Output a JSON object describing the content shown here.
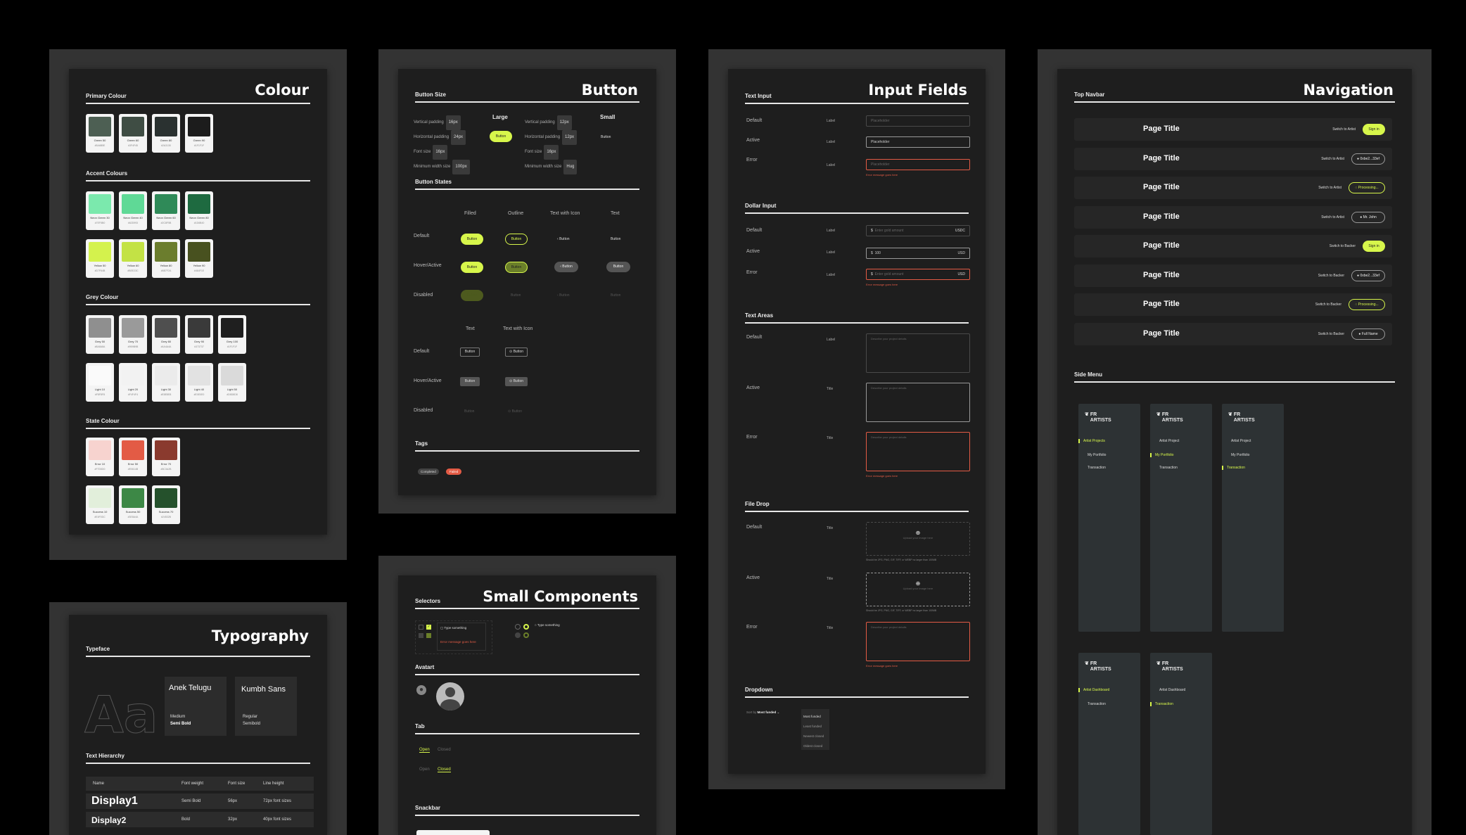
{
  "colour": {
    "title": "Colour",
    "primary_title": "Primary Colour",
    "accent_title": "Accent Colours",
    "grey_title": "Grey Colour",
    "state_title": "State Colour",
    "primary": [
      {
        "n": "Green 50",
        "h": "#5A6B5E",
        "c": "#4d5f53"
      },
      {
        "n": "Green 60",
        "h": "#3F4F45",
        "c": "#3f4d44"
      },
      {
        "n": "Green 80",
        "h": "#2A3130",
        "c": "#2a3130"
      },
      {
        "n": "Green 90",
        "h": "#1F1F1F",
        "c": "#1c1c1c"
      }
    ],
    "accent1": [
      {
        "n": "Neon Green 30",
        "h": "#7EF5B0",
        "c": "#7be9ad"
      },
      {
        "n": "Neon Green 40",
        "h": "#62D993",
        "c": "#5fd996"
      },
      {
        "n": "Neon Green 60",
        "h": "#2C8F5B",
        "c": "#2f8a58"
      },
      {
        "n": "Neon Green 80",
        "h": "#1D6B40",
        "c": "#1e6a40"
      }
    ],
    "accent2": [
      {
        "n": "Yellow 50",
        "h": "#D7F64B",
        "c": "#d4f24d"
      },
      {
        "n": "Yellow 60",
        "h": "#BEE23C",
        "c": "#c3e245"
      },
      {
        "n": "Yellow 80",
        "h": "#6B7F2A",
        "c": "#6b7d2d"
      },
      {
        "n": "Yellow 90",
        "h": "#464F1E",
        "c": "#48511f"
      }
    ],
    "grey1": [
      {
        "n": "Grey 50",
        "h": "#8A8A8A",
        "c": "#8f8f8f"
      },
      {
        "n": "Grey 70",
        "h": "#9B9B9B",
        "c": "#9a9a9a"
      },
      {
        "n": "Grey 80",
        "h": "#4A4A4A",
        "c": "#4f4f4f"
      },
      {
        "n": "Grey 90",
        "h": "#373737",
        "c": "#3a3a3a"
      },
      {
        "n": "Grey 100",
        "h": "#1F1F1F",
        "c": "#1f1f1f"
      }
    ],
    "grey2": [
      {
        "n": "Light 10",
        "h": "#F8F8F8",
        "c": "#fafafa"
      },
      {
        "n": "Light 20",
        "h": "#F4F4F4",
        "c": "#f2f2f2"
      },
      {
        "n": "Light 30",
        "h": "#E8E8E8",
        "c": "#ebebeb"
      },
      {
        "n": "Light 40",
        "h": "#E0E0E0",
        "c": "#e2e2e2"
      },
      {
        "n": "Light 50",
        "h": "#D8D8D8",
        "c": "#dadada"
      }
    ],
    "state1": [
      {
        "n": "Error 10",
        "h": "#F7D5D0",
        "c": "#f7d3cf"
      },
      {
        "n": "Error 50",
        "h": "#E0614B",
        "c": "#e35b45"
      },
      {
        "n": "Error 70",
        "h": "#8C3A2B",
        "c": "#8a3a2e"
      }
    ],
    "state2": [
      {
        "n": "Success 10",
        "h": "#E4F0DC",
        "c": "#e2efdb"
      },
      {
        "n": "Success 50",
        "h": "#3E8A4A",
        "c": "#3d8846"
      },
      {
        "n": "Success 70",
        "h": "#24532B",
        "c": "#25512c"
      }
    ]
  },
  "typo": {
    "title": "Typography",
    "typeface": "Typeface",
    "aa": "Aa",
    "font1": "Anek Telugu",
    "font1_w1": "Medium",
    "font1_w2": "Semi Bold",
    "font2": "Kumbh Sans",
    "font2_w1": "Regular",
    "font2_w2": "Semibold",
    "hier": "Text Hierarchy",
    "cols": [
      "Name",
      "Font weight",
      "Font size",
      "Line height"
    ],
    "rows": [
      [
        "Display1",
        "Semi Bold",
        "56px",
        "72px font sizes"
      ],
      [
        "Display2",
        "Bold",
        "32px",
        "40px font sizes"
      ]
    ]
  },
  "button": {
    "title": "Button",
    "size_title": "Button Size",
    "large": "Large",
    "small": "Small",
    "btn": "Button",
    "large_specs": [
      [
        "Vertical padding",
        "16px"
      ],
      [
        "Horizontal padding",
        "24px"
      ],
      [
        "Font size",
        "16px"
      ],
      [
        "Minimum width size",
        "100px"
      ]
    ],
    "small_specs": [
      [
        "Vertical padding",
        "12px"
      ],
      [
        "Horizontal padding",
        "12px"
      ],
      [
        "Font size",
        "16px"
      ],
      [
        "Minimum width size",
        "Hug"
      ]
    ],
    "states_title": "Button States",
    "cols1": [
      "Filled",
      "Outline",
      "Text with Icon",
      "Text"
    ],
    "rows": [
      "Default",
      "Hover/Active",
      "Disabled"
    ],
    "cols2": [
      "Text",
      "Text with Icon"
    ],
    "tags_title": "Tags",
    "tag1": "Completed",
    "tag2": "Failed"
  },
  "small": {
    "title": "Small Components",
    "selectors": "Selectors",
    "type_something": "Type something",
    "type_something2": "Type something",
    "error_text": "Error message goes here",
    "avatar": "Avatart",
    "tab": "Tab",
    "open": "Open",
    "closed": "Closed",
    "snackbar": "Snackbar"
  },
  "input": {
    "title": "Input Fields",
    "text_input": "Text Input",
    "states": [
      "Default",
      "Active",
      "Error"
    ],
    "label": "Label",
    "title_lbl": "Title",
    "placeholder": "Placeholder",
    "error_msg": "Error message goes here",
    "dollar": "Dollar Input",
    "usdc": "USDC",
    "usd": "USD",
    "enter_value": "Enter gold amount",
    "val": "100",
    "dollar_sign": "$",
    "areas": "Text Areas",
    "area_ph": "Describe your project details",
    "filedrop": "File Drop",
    "upload": "Upload your image here",
    "filenote": "Should be JPG, PNG, GIF, TIFF, or WEBP no larger than 100MB",
    "dropdown": "Dropdown",
    "sortby": "Sort by",
    "most_funded": "Most funded",
    "options": [
      "Most funded",
      "Least funded",
      "Newest closed",
      "Oldest closed"
    ]
  },
  "nav": {
    "title": "Navigation",
    "top": "Top Navbar",
    "page_title": "Page Title",
    "rows": [
      {
        "s": "Switch to Artist",
        "b": "Sign in",
        "k": "fill"
      },
      {
        "s": "Switch to Artist",
        "b": "0xbe2...33ef",
        "k": "addr"
      },
      {
        "s": "Switch to Artist",
        "b": "Processing...",
        "k": "proc"
      },
      {
        "s": "Switch to Artist",
        "b": "Mr. John",
        "k": "name"
      },
      {
        "s": "Switch to Backer",
        "b": "Sign in",
        "k": "fill"
      },
      {
        "s": "Switch to Backer",
        "b": "0xbe2...33ef",
        "k": "addr"
      },
      {
        "s": "Switch to Backer",
        "b": "Processing...",
        "k": "proc"
      },
      {
        "s": "Switch to Backer",
        "b": "Full Name",
        "k": "name"
      }
    ],
    "side": "Side Menu",
    "logo1": "FR",
    "logo2": "ARTISTS",
    "menu1": [
      "Artist Projects",
      "My Portfolio",
      "Transaction"
    ],
    "menu2": [
      "Artist Project",
      "My Portfolio",
      "Transaction"
    ],
    "menu3": [
      "Artist Project",
      "My Portfolio",
      "Transaction"
    ],
    "menu4": [
      "Artist Dashboard",
      "Transaction"
    ],
    "menu5": [
      "Artist Dashboard",
      "Transaction"
    ]
  },
  "colors": {
    "accent": "#d7f64b",
    "error": "#e35b45",
    "bg": "#1e1e1e",
    "board": "#333333"
  }
}
